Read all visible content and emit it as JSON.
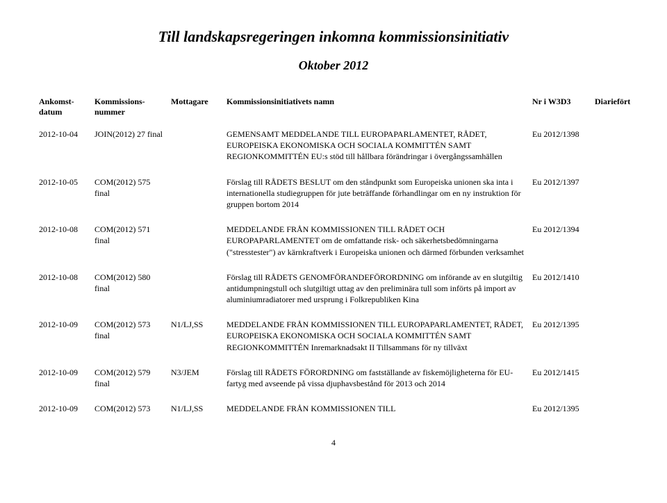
{
  "title": "Till landskapsregeringen inkomna kommissionsinitiativ",
  "subtitle": "Oktober 2012",
  "headers": {
    "datum": "Ankomst-\ndatum",
    "nummer": "Kommissions-\nnummer",
    "mottagare": "Mottagare",
    "namn": "Kommissionsinitiativets namn",
    "w3d3": "Nr i W3D3",
    "diariefort": "Diariefört"
  },
  "rows": [
    {
      "datum": "2012-10-04",
      "nummer": "JOIN(2012) 27 final",
      "mottagare": "",
      "namn": "GEMENSAMT MEDDELANDE TILL EUROPAPARLAMENTET, RÅDET, EUROPEISKA EKONOMISKA OCH SOCIALA KOMMITTÉN SAMT REGIONKOMMITTÉN EU:s stöd till hållbara förändringar i övergångssamhällen",
      "w3d3": "Eu 2012/1398",
      "diariefort": ""
    },
    {
      "datum": "2012-10-05",
      "nummer": "COM(2012) 575 final",
      "mottagare": "",
      "namn": "Förslag till RÅDETS BESLUT om den ståndpunkt som Europeiska unionen ska inta i internationella studiegruppen för jute beträffande förhandlingar om en ny instruktion för gruppen bortom 2014",
      "w3d3": "Eu 2012/1397",
      "diariefort": ""
    },
    {
      "datum": "2012-10-08",
      "nummer": "COM(2012) 571 final",
      "mottagare": "",
      "namn": "MEDDELANDE FRÅN KOMMISSIONEN TILL RÅDET OCH EUROPAPARLAMENTET om de omfattande risk- och säkerhetsbedömningarna (\"stresstester\") av kärnkraftverk i Europeiska unionen och därmed förbunden verksamhet",
      "w3d3": "Eu 2012/1394",
      "diariefort": ""
    },
    {
      "datum": "2012-10-08",
      "nummer": "COM(2012) 580 final",
      "mottagare": "",
      "namn": "Förslag till RÅDETS GENOMFÖRANDEFÖRORDNING om införande av en slutgiltig antidumpningstull och slutgiltigt uttag av den preliminära tull som införts på import av aluminiumradiatorer med ursprung i Folkrepubliken Kina",
      "w3d3": "Eu 2012/1410",
      "diariefort": ""
    },
    {
      "datum": "2012-10-09",
      "nummer": "COM(2012) 573 final",
      "mottagare": "N1/LJ,SS",
      "namn": "MEDDELANDE FRÅN KOMMISSIONEN TILL EUROPAPARLAMENTET, RÅDET, EUROPEISKA EKONOMISKA OCH SOCIALA KOMMITTÉN SAMT REGIONKOMMITTÉN Inremarknadsakt II Tillsammans för ny tillväxt",
      "w3d3": "Eu 2012/1395",
      "diariefort": ""
    },
    {
      "datum": "2012-10-09",
      "nummer": "COM(2012) 579 final",
      "mottagare": "N3/JEM",
      "namn": "Förslag till RÅDETS FÖRORDNING om fastställande av fiskemöjligheterna för EU-fartyg med avseende på vissa djuphavsbestånd för 2013 och 2014",
      "w3d3": "Eu 2012/1415",
      "diariefort": ""
    },
    {
      "datum": "2012-10-09",
      "nummer": "COM(2012) 573",
      "mottagare": "N1/LJ,SS",
      "namn": "MEDDELANDE FRÅN KOMMISSIONEN TILL",
      "w3d3": "Eu 2012/1395",
      "diariefort": ""
    }
  ],
  "page_number": "4"
}
